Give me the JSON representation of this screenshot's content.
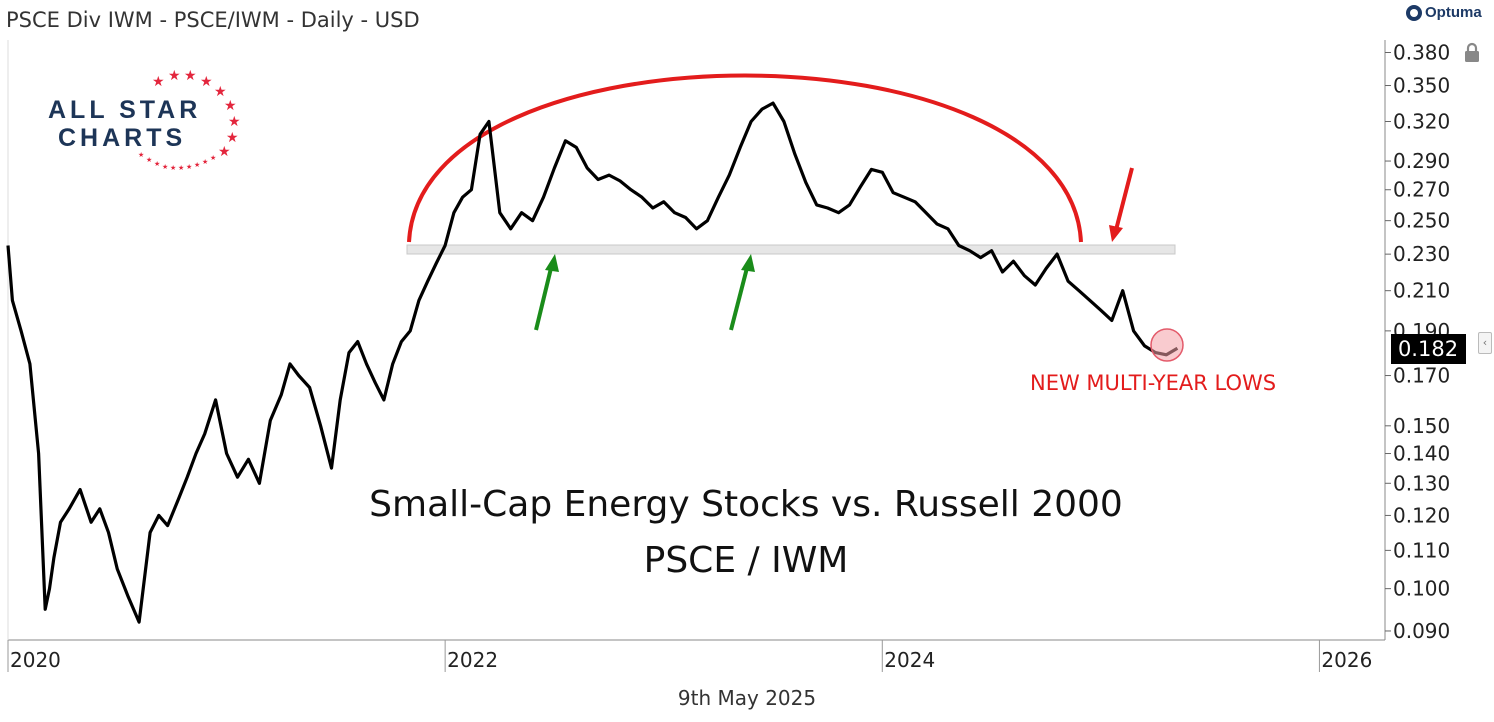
{
  "header": {
    "title": "PSCE Div IWM - PSCE/IWM - Daily - USD",
    "brand": "Optuma"
  },
  "logo": {
    "line1": "ALL STAR",
    "line2": "CHARTS"
  },
  "footer": {
    "date": "9th May 2025"
  },
  "chart_data": {
    "type": "line",
    "title": "Small-Cap Energy Stocks vs. Russell 2000",
    "subtitle": "PSCE / IWM",
    "yscale": "log",
    "ylim": [
      0.088,
      0.392
    ],
    "xlim": [
      2020.0,
      2026.3
    ],
    "y_ticks": [
      "0.380",
      "0.350",
      "0.320",
      "0.290",
      "0.270",
      "0.250",
      "0.230",
      "0.210",
      "0.190",
      "0.170",
      "0.150",
      "0.140",
      "0.130",
      "0.120",
      "0.110",
      "0.100",
      "0.090"
    ],
    "x_ticks": [
      "2020",
      "2022",
      "2024",
      "2026"
    ],
    "last_value": "0.182",
    "series": [
      {
        "color": "#000000",
        "x": [
          2020.0,
          2020.02,
          2020.06,
          2020.1,
          2020.14,
          2020.17,
          2020.19,
          2020.21,
          2020.24,
          2020.28,
          2020.33,
          2020.38,
          2020.42,
          2020.46,
          2020.5,
          2020.55,
          2020.6,
          2020.65,
          2020.69,
          2020.73,
          2020.78,
          2020.82,
          2020.86,
          2020.9,
          2020.95,
          2021.0,
          2021.05,
          2021.1,
          2021.15,
          2021.2,
          2021.25,
          2021.29,
          2021.33,
          2021.38,
          2021.43,
          2021.48,
          2021.52,
          2021.56,
          2021.6,
          2021.64,
          2021.68,
          2021.72,
          2021.76,
          2021.8,
          2021.84,
          2021.88,
          2021.92,
          2021.96,
          2022.0,
          2022.04,
          2022.08,
          2022.12,
          2022.16,
          2022.2,
          2022.25,
          2022.3,
          2022.35,
          2022.4,
          2022.45,
          2022.5,
          2022.55,
          2022.6,
          2022.65,
          2022.7,
          2022.75,
          2022.8,
          2022.85,
          2022.9,
          2022.95,
          2023.0,
          2023.05,
          2023.1,
          2023.15,
          2023.2,
          2023.25,
          2023.3,
          2023.35,
          2023.4,
          2023.45,
          2023.5,
          2023.55,
          2023.6,
          2023.65,
          2023.7,
          2023.75,
          2023.8,
          2023.85,
          2023.9,
          2023.95,
          2024.0,
          2024.05,
          2024.1,
          2024.15,
          2024.2,
          2024.25,
          2024.3,
          2024.35,
          2024.4,
          2024.45,
          2024.5,
          2024.55,
          2024.6,
          2024.65,
          2024.7,
          2024.75,
          2024.8,
          2024.85,
          2024.9,
          2024.95,
          2025.0,
          2025.05,
          2025.1,
          2025.15,
          2025.2,
          2025.25,
          2025.3,
          2025.35
        ],
        "y": [
          0.235,
          0.205,
          0.19,
          0.175,
          0.14,
          0.095,
          0.1,
          0.108,
          0.118,
          0.122,
          0.128,
          0.118,
          0.122,
          0.115,
          0.105,
          0.098,
          0.092,
          0.115,
          0.12,
          0.117,
          0.125,
          0.132,
          0.14,
          0.147,
          0.16,
          0.14,
          0.132,
          0.138,
          0.13,
          0.152,
          0.162,
          0.175,
          0.17,
          0.165,
          0.15,
          0.135,
          0.16,
          0.18,
          0.185,
          0.175,
          0.167,
          0.16,
          0.175,
          0.185,
          0.19,
          0.205,
          0.215,
          0.225,
          0.235,
          0.255,
          0.265,
          0.27,
          0.31,
          0.32,
          0.255,
          0.245,
          0.255,
          0.25,
          0.265,
          0.285,
          0.305,
          0.3,
          0.285,
          0.277,
          0.28,
          0.276,
          0.27,
          0.265,
          0.258,
          0.262,
          0.255,
          0.252,
          0.245,
          0.25,
          0.265,
          0.28,
          0.3,
          0.32,
          0.33,
          0.335,
          0.32,
          0.295,
          0.275,
          0.26,
          0.258,
          0.255,
          0.26,
          0.272,
          0.284,
          0.282,
          0.268,
          0.265,
          0.262,
          0.255,
          0.248,
          0.245,
          0.235,
          0.232,
          0.228,
          0.232,
          0.22,
          0.226,
          0.218,
          0.213,
          0.222,
          0.23,
          0.215,
          0.21,
          0.205,
          0.2,
          0.195,
          0.21,
          0.19,
          0.183,
          0.18,
          0.179,
          0.182
        ]
      }
    ],
    "annotations": {
      "callout": "NEW MULTI-YEAR LOWS"
    }
  }
}
